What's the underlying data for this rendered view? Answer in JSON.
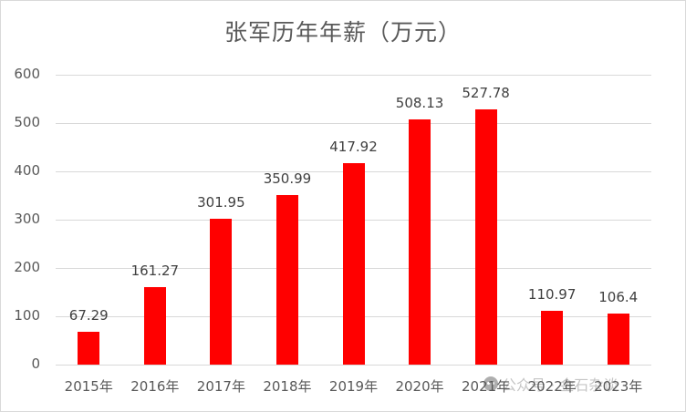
{
  "chart_data": {
    "type": "bar",
    "title": "张军历年年薪（万元）",
    "categories": [
      "2015年",
      "2016年",
      "2017年",
      "2018年",
      "2019年",
      "2020年",
      "2021年",
      "2022年",
      "2023年"
    ],
    "values": [
      67.29,
      161.27,
      301.95,
      350.99,
      417.92,
      508.13,
      527.78,
      110.97,
      106.4
    ],
    "data_labels": [
      "67.29",
      "161.27",
      "301.95",
      "350.99",
      "417.92",
      "508.13",
      "527.78",
      "110.97",
      "106.4"
    ],
    "xlabel": "",
    "ylabel": "",
    "ylim": [
      0,
      600
    ],
    "yticks": [
      "0",
      "100",
      "200",
      "300",
      "400",
      "500",
      "600"
    ],
    "grid": true,
    "legend": "none",
    "bar_color": "#ff0000"
  },
  "watermark": {
    "icon": "wechat-icon",
    "text": "公众号 · 金石杂谈"
  }
}
